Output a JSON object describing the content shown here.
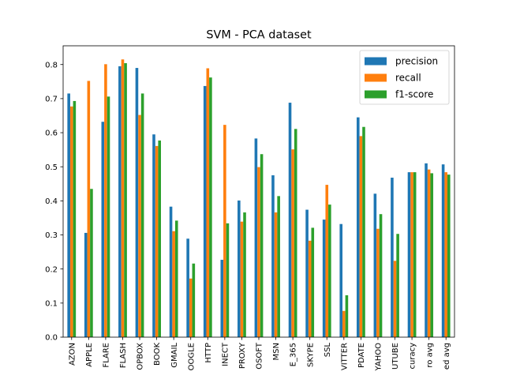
{
  "chart_data": {
    "type": "bar",
    "title": "SVM - PCA dataset",
    "xlabel": "",
    "ylabel": "",
    "ylim": [
      0,
      0.855
    ],
    "yticks": [
      0.0,
      0.1,
      0.2,
      0.3,
      0.4,
      0.5,
      0.6,
      0.7,
      0.8
    ],
    "ytick_labels": [
      "0.0",
      "0.1",
      "0.2",
      "0.3",
      "0.4",
      "0.5",
      "0.6",
      "0.7",
      "0.8"
    ],
    "categories": [
      "AZON",
      "APPLE",
      "FLARE",
      "FLASH",
      "OPBOX",
      "BOOK",
      "GMAIL",
      "OOGLE",
      "HTTP",
      "INECT",
      "PROXY",
      "OSOFT",
      "MSN",
      "E_365",
      "SKYPE",
      "SSL",
      "VITTER",
      "PDATE",
      "YAHOO",
      "UTUBE",
      "curacy",
      "ro avg",
      "ed avg"
    ],
    "series": [
      {
        "name": "precision",
        "color": "#1f77b4",
        "values": [
          0.715,
          0.306,
          0.632,
          0.795,
          0.79,
          0.595,
          0.383,
          0.289,
          0.737,
          0.227,
          0.401,
          0.583,
          0.475,
          0.688,
          0.374,
          0.345,
          0.332,
          0.645,
          0.421,
          0.468,
          0.484,
          0.51,
          0.507
        ]
      },
      {
        "name": "recall",
        "color": "#ff7f0e",
        "values": [
          0.677,
          0.752,
          0.801,
          0.815,
          0.652,
          0.561,
          0.311,
          0.172,
          0.789,
          0.623,
          0.339,
          0.499,
          0.366,
          0.551,
          0.283,
          0.447,
          0.077,
          0.59,
          0.318,
          0.224,
          0.484,
          0.492,
          0.484
        ]
      },
      {
        "name": "f1-score",
        "color": "#2ca02c",
        "values": [
          0.693,
          0.435,
          0.706,
          0.804,
          0.715,
          0.577,
          0.342,
          0.216,
          0.762,
          0.334,
          0.366,
          0.537,
          0.414,
          0.611,
          0.321,
          0.389,
          0.123,
          0.617,
          0.361,
          0.303,
          0.484,
          0.481,
          0.477
        ]
      }
    ],
    "legend": {
      "position": "top-right"
    },
    "grid": false
  }
}
